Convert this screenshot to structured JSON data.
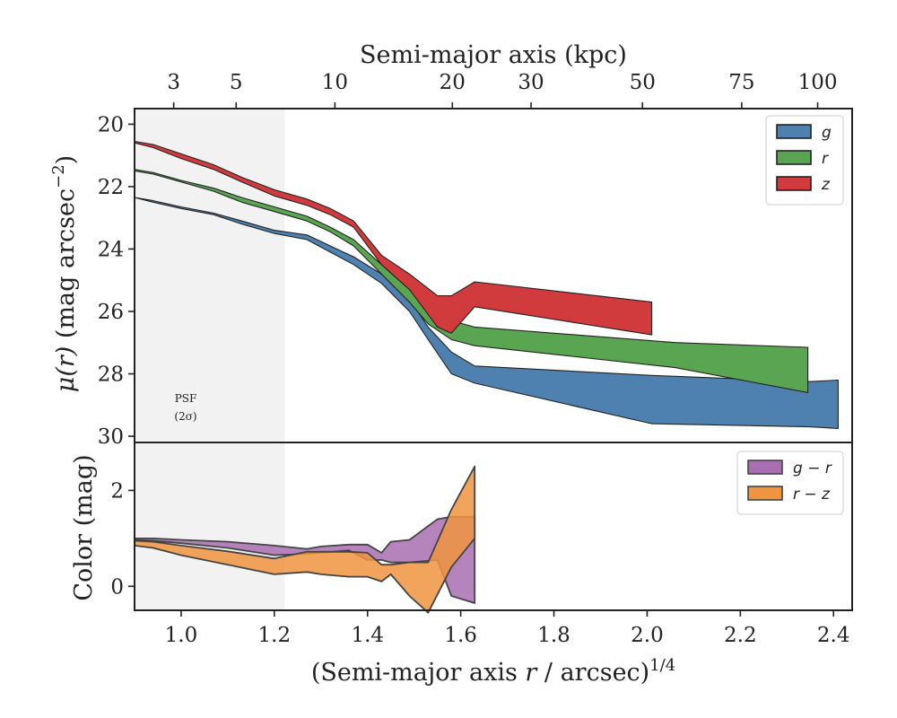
{
  "chart_data": [
    {
      "type": "area",
      "panel": "top",
      "ylabel_main": "μ(r)",
      "ylabel_unit": "(mag arcsec",
      "ylabel_exp": "−2",
      "ylabel_close": ")",
      "top_axis_title": "Semi-major axis (kpc)",
      "top_ticks": [
        {
          "kpc": 3,
          "label": "3",
          "r14": 0.984
        },
        {
          "kpc": 5,
          "label": "5",
          "r14": 1.118
        },
        {
          "kpc": 10,
          "label": "10",
          "r14": 1.33
        },
        {
          "kpc": 20,
          "label": "20",
          "r14": 1.582
        },
        {
          "kpc": 30,
          "label": "30",
          "r14": 1.751
        },
        {
          "kpc": 50,
          "label": "50",
          "r14": 1.99
        },
        {
          "kpc": 75,
          "label": "75",
          "r14": 2.203
        },
        {
          "kpc": 100,
          "label": "100",
          "r14": 2.366
        }
      ],
      "ylim": [
        30.2,
        19.5
      ],
      "y_ticks": [
        "20",
        "22",
        "24",
        "26",
        "28",
        "30"
      ],
      "y_tick_values": [
        20,
        22,
        24,
        26,
        28,
        30
      ],
      "psf_region": {
        "xmax": 1.222,
        "label_line1": "PSF",
        "label_line2": "(2σ)"
      },
      "legend_position": "top-right",
      "series": [
        {
          "name": "g",
          "color": "#4f81b0",
          "upper": [
            [
              0.9,
              22.35
            ],
            [
              0.94,
              22.45
            ],
            [
              1.0,
              22.65
            ],
            [
              1.07,
              22.85
            ],
            [
              1.13,
              23.1
            ],
            [
              1.2,
              23.4
            ],
            [
              1.27,
              23.55
            ],
            [
              1.32,
              23.9
            ],
            [
              1.37,
              24.25
            ],
            [
              1.43,
              24.8
            ],
            [
              1.49,
              25.6
            ],
            [
              1.53,
              26.5
            ],
            [
              1.58,
              27.3
            ],
            [
              1.63,
              27.75
            ],
            [
              2.01,
              28.05
            ],
            [
              2.35,
              28.25
            ],
            [
              2.41,
              28.2
            ]
          ],
          "lower": [
            [
              0.9,
              22.35
            ],
            [
              0.94,
              22.5
            ],
            [
              1.0,
              22.7
            ],
            [
              1.07,
              22.9
            ],
            [
              1.13,
              23.2
            ],
            [
              1.2,
              23.5
            ],
            [
              1.27,
              23.7
            ],
            [
              1.32,
              24.1
            ],
            [
              1.37,
              24.5
            ],
            [
              1.43,
              25.1
            ],
            [
              1.49,
              26.0
            ],
            [
              1.53,
              26.9
            ],
            [
              1.58,
              28.0
            ],
            [
              1.63,
              28.3
            ],
            [
              2.01,
              29.6
            ],
            [
              2.35,
              29.7
            ],
            [
              2.41,
              29.75
            ]
          ]
        },
        {
          "name": "r",
          "color": "#5aa552",
          "upper": [
            [
              0.9,
              21.45
            ],
            [
              0.94,
              21.55
            ],
            [
              1.0,
              21.8
            ],
            [
              1.07,
              22.05
            ],
            [
              1.13,
              22.35
            ],
            [
              1.2,
              22.65
            ],
            [
              1.27,
              22.95
            ],
            [
              1.32,
              23.3
            ],
            [
              1.37,
              23.7
            ],
            [
              1.43,
              24.5
            ],
            [
              1.49,
              25.3
            ],
            [
              1.53,
              25.9
            ],
            [
              1.58,
              26.3
            ],
            [
              1.63,
              26.5
            ],
            [
              2.06,
              27.0
            ],
            [
              2.345,
              27.15
            ]
          ],
          "lower": [
            [
              0.9,
              21.5
            ],
            [
              0.94,
              21.6
            ],
            [
              1.0,
              21.85
            ],
            [
              1.07,
              22.15
            ],
            [
              1.13,
              22.5
            ],
            [
              1.2,
              22.8
            ],
            [
              1.27,
              23.1
            ],
            [
              1.32,
              23.45
            ],
            [
              1.37,
              23.9
            ],
            [
              1.43,
              24.8
            ],
            [
              1.49,
              25.7
            ],
            [
              1.53,
              26.4
            ],
            [
              1.58,
              26.9
            ],
            [
              1.63,
              27.1
            ],
            [
              2.06,
              27.8
            ],
            [
              2.345,
              28.6
            ]
          ]
        },
        {
          "name": "z",
          "color": "#d23b3d",
          "upper": [
            [
              0.9,
              20.55
            ],
            [
              0.94,
              20.65
            ],
            [
              1.0,
              20.95
            ],
            [
              1.07,
              21.3
            ],
            [
              1.13,
              21.7
            ],
            [
              1.2,
              22.1
            ],
            [
              1.27,
              22.4
            ],
            [
              1.32,
              22.7
            ],
            [
              1.37,
              23.1
            ],
            [
              1.43,
              24.2
            ],
            [
              1.49,
              24.8
            ],
            [
              1.55,
              25.5
            ],
            [
              1.58,
              25.5
            ],
            [
              1.63,
              25.05
            ],
            [
              2.01,
              25.7
            ]
          ],
          "lower": [
            [
              0.9,
              20.6
            ],
            [
              0.94,
              20.75
            ],
            [
              1.0,
              21.1
            ],
            [
              1.07,
              21.45
            ],
            [
              1.13,
              21.85
            ],
            [
              1.2,
              22.3
            ],
            [
              1.27,
              22.6
            ],
            [
              1.32,
              22.9
            ],
            [
              1.37,
              23.3
            ],
            [
              1.43,
              24.5
            ],
            [
              1.49,
              25.3
            ],
            [
              1.55,
              26.5
            ],
            [
              1.58,
              26.7
            ],
            [
              1.63,
              25.85
            ],
            [
              2.01,
              26.75
            ]
          ]
        }
      ]
    },
    {
      "type": "area",
      "panel": "bottom",
      "xlabel_pre": "(Semi-major axis ",
      "xlabel_var": "r",
      "xlabel_post": " / arcsec)",
      "xlabel_exp": "1/4",
      "ylabel": "Color (mag)",
      "xlim": [
        0.9,
        2.44
      ],
      "ylim": [
        -0.5,
        3.0
      ],
      "x_ticks": [
        "1.0",
        "1.2",
        "1.4",
        "1.6",
        "1.8",
        "2.0",
        "2.2",
        "2.4"
      ],
      "x_tick_values": [
        1.0,
        1.2,
        1.4,
        1.6,
        1.8,
        2.0,
        2.2,
        2.4
      ],
      "y_ticks": [
        "0",
        "2"
      ],
      "y_tick_values": [
        0,
        2
      ],
      "legend_position": "top-right",
      "series": [
        {
          "name": "g − r",
          "name_left": "g",
          "name_op": "−",
          "name_right": "r",
          "color": "#a86fb0",
          "upper": [
            [
              0.9,
              1.0
            ],
            [
              0.94,
              1.0
            ],
            [
              1.0,
              0.97
            ],
            [
              1.1,
              0.93
            ],
            [
              1.2,
              0.85
            ],
            [
              1.27,
              0.78
            ],
            [
              1.3,
              0.83
            ],
            [
              1.36,
              0.87
            ],
            [
              1.4,
              0.87
            ],
            [
              1.43,
              0.7
            ],
            [
              1.45,
              0.93
            ],
            [
              1.49,
              0.97
            ],
            [
              1.55,
              1.4
            ],
            [
              1.58,
              1.45
            ],
            [
              1.63,
              1.45
            ]
          ],
          "lower": [
            [
              0.9,
              0.97
            ],
            [
              0.94,
              0.95
            ],
            [
              1.0,
              0.9
            ],
            [
              1.1,
              0.8
            ],
            [
              1.2,
              0.65
            ],
            [
              1.27,
              0.68
            ],
            [
              1.3,
              0.7
            ],
            [
              1.36,
              0.75
            ],
            [
              1.4,
              0.55
            ],
            [
              1.43,
              0.55
            ],
            [
              1.45,
              0.5
            ],
            [
              1.49,
              0.5
            ],
            [
              1.55,
              0.55
            ],
            [
              1.58,
              -0.2
            ],
            [
              1.63,
              -0.35
            ]
          ]
        },
        {
          "name": "r − z",
          "name_left": "r",
          "name_op": "−",
          "name_right": "z",
          "color": "#f0943f",
          "upper": [
            [
              0.9,
              0.95
            ],
            [
              0.94,
              0.93
            ],
            [
              1.0,
              0.85
            ],
            [
              1.1,
              0.73
            ],
            [
              1.2,
              0.58
            ],
            [
              1.27,
              0.72
            ],
            [
              1.3,
              0.72
            ],
            [
              1.36,
              0.72
            ],
            [
              1.4,
              0.7
            ],
            [
              1.43,
              0.45
            ],
            [
              1.45,
              0.45
            ],
            [
              1.49,
              0.5
            ],
            [
              1.53,
              0.5
            ],
            [
              1.58,
              1.6
            ],
            [
              1.63,
              2.5
            ]
          ],
          "lower": [
            [
              0.9,
              0.85
            ],
            [
              0.94,
              0.8
            ],
            [
              1.0,
              0.65
            ],
            [
              1.1,
              0.45
            ],
            [
              1.2,
              0.25
            ],
            [
              1.27,
              0.3
            ],
            [
              1.3,
              0.25
            ],
            [
              1.36,
              0.2
            ],
            [
              1.4,
              0.2
            ],
            [
              1.43,
              0.1
            ],
            [
              1.45,
              0.25
            ],
            [
              1.49,
              -0.2
            ],
            [
              1.53,
              -0.55
            ],
            [
              1.58,
              0.4
            ],
            [
              1.63,
              1.0
            ]
          ]
        }
      ]
    }
  ]
}
